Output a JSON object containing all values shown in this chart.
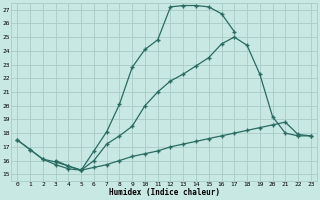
{
  "xlabel": "Humidex (Indice chaleur)",
  "bg_color": "#c8e8e4",
  "line_color": "#2a6b62",
  "grid_color": "#a8ccc8",
  "xlim": [
    -0.5,
    23.5
  ],
  "ylim": [
    14.5,
    27.5
  ],
  "xticks": [
    0,
    1,
    2,
    3,
    4,
    5,
    6,
    7,
    8,
    9,
    10,
    11,
    12,
    13,
    14,
    15,
    16,
    17,
    18,
    19,
    20,
    21,
    22,
    23
  ],
  "yticks": [
    15,
    16,
    17,
    18,
    19,
    20,
    21,
    22,
    23,
    24,
    25,
    26,
    27
  ],
  "lines": [
    {
      "x": [
        0,
        1,
        2,
        3,
        4,
        5,
        6,
        7,
        8,
        9,
        10,
        11,
        12,
        13,
        14,
        15,
        16,
        17
      ],
      "y": [
        17.5,
        16.8,
        16.1,
        15.7,
        15.4,
        15.3,
        16.7,
        18.1,
        20.1,
        22.8,
        24.1,
        24.8,
        27.2,
        27.3,
        27.3,
        27.2,
        26.7,
        25.4
      ]
    },
    {
      "x": [
        3,
        4,
        5,
        6,
        7,
        8,
        9,
        10,
        11,
        12,
        13,
        14,
        15,
        16,
        17,
        18,
        19,
        20,
        21,
        22,
        23
      ],
      "y": [
        16.0,
        15.6,
        15.3,
        16.0,
        17.2,
        17.8,
        18.5,
        20.0,
        21.0,
        21.8,
        22.3,
        22.9,
        23.5,
        24.5,
        25.0,
        24.4,
        22.3,
        19.2,
        18.0,
        17.8,
        17.8
      ]
    },
    {
      "x": [
        0,
        1,
        2,
        3,
        4,
        5,
        6,
        7,
        8,
        9,
        10,
        11,
        12,
        13,
        14,
        15,
        16,
        17,
        18,
        19,
        20,
        21,
        22,
        23
      ],
      "y": [
        17.5,
        16.8,
        16.1,
        15.9,
        15.6,
        15.3,
        15.5,
        15.7,
        16.0,
        16.3,
        16.5,
        16.7,
        17.0,
        17.2,
        17.4,
        17.6,
        17.8,
        18.0,
        18.2,
        18.4,
        18.6,
        18.8,
        17.9,
        17.8
      ]
    }
  ]
}
